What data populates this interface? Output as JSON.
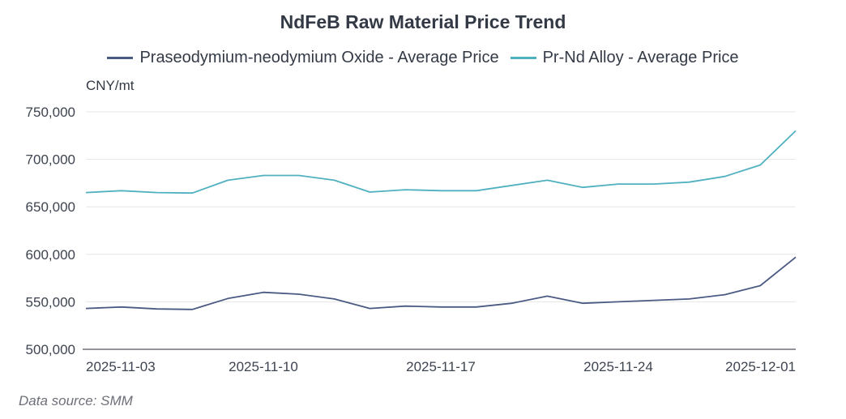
{
  "chart_data": {
    "type": "line",
    "title": "NdFeB Raw Material Price Trend",
    "ylabel": "CNY/mt",
    "xlabel": "",
    "ylim": [
      500000,
      750000
    ],
    "yticks": [
      500000,
      550000,
      600000,
      650000,
      700000,
      750000
    ],
    "ytick_labels": [
      "500,000",
      "550,000",
      "600,000",
      "650,000",
      "700,000",
      "750,000"
    ],
    "x": [
      "2025-11-03",
      "2025-11-04",
      "2025-11-05",
      "2025-11-06",
      "2025-11-07",
      "2025-11-10",
      "2025-11-11",
      "2025-11-12",
      "2025-11-13",
      "2025-11-14",
      "2025-11-17",
      "2025-11-18",
      "2025-11-19",
      "2025-11-20",
      "2025-11-21",
      "2025-11-24",
      "2025-11-25",
      "2025-11-26",
      "2025-11-27",
      "2025-11-28",
      "2025-12-01"
    ],
    "xtick_labels": [
      "2025-11-03",
      "2025-11-10",
      "2025-11-17",
      "2025-11-24",
      "2025-12-01"
    ],
    "grid": true,
    "legend_position": "top-center",
    "series": [
      {
        "name": "Praseodymium-neodymium Oxide - Average Price",
        "color": "#4a5a83",
        "values": [
          543000,
          544500,
          542500,
          542000,
          553500,
          560000,
          558000,
          553000,
          543000,
          545500,
          544500,
          544500,
          548500,
          556000,
          548500,
          550000,
          551500,
          553000,
          557500,
          567000,
          597000
        ]
      },
      {
        "name": "Pr-Nd Alloy - Average Price",
        "color": "#4fb0bf",
        "values": [
          665000,
          667000,
          665000,
          664500,
          678000,
          683000,
          683000,
          678000,
          665500,
          668000,
          667000,
          667000,
          672500,
          678000,
          670500,
          674000,
          674000,
          676000,
          682000,
          694000,
          730000
        ]
      }
    ]
  },
  "footer": {
    "source": "Data source:  SMM"
  }
}
